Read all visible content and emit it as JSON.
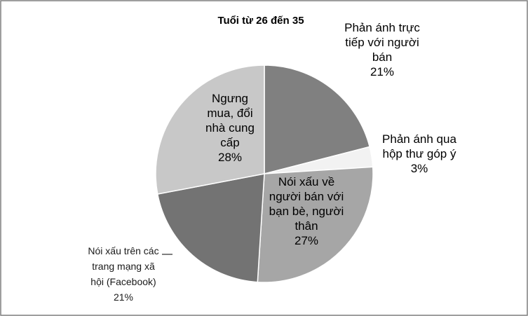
{
  "chart_data": {
    "type": "pie",
    "title": "Tuổi từ 26 đến 35",
    "start_angle_deg": 0,
    "direction": "clockwise",
    "slices": [
      {
        "label": "Phản ánh trực tiếp với người bán",
        "value": 21,
        "value_label": "21%",
        "label_lines": [
          "Phản ánh trực",
          "tiếp với người",
          "bán",
          "21%"
        ],
        "color": "#808080"
      },
      {
        "label": "Phản ánh qua hộp thư góp ý",
        "value": 3,
        "value_label": "3%",
        "label_lines": [
          "Phản ánh qua",
          "hộp thư góp ý",
          "3%"
        ],
        "color": "#f2f2f2"
      },
      {
        "label": "Nói xấu về người bán với bạn bè, người thân",
        "value": 27,
        "value_label": "27%",
        "label_lines": [
          "Nói xấu về",
          "người bán với",
          "bạn bè, người",
          "thân",
          "27%"
        ],
        "color": "#a6a6a6"
      },
      {
        "label": "Nói xấu trên các trang mạng xã hội (Facebook)",
        "value": 21,
        "value_label": "21%",
        "label_lines": [
          "Nói xấu trên các",
          "trang mạng xã",
          "hội (Facebook)",
          "21%"
        ],
        "color": "#737373"
      },
      {
        "label": "Ngưng mua, đổi nhà cung cấp",
        "value": 28,
        "value_label": "28%",
        "label_lines": [
          "Ngưng",
          "mua, đổi",
          "nhà cung",
          "cấp",
          "28%"
        ],
        "color": "#c8c8c8"
      }
    ],
    "legend": "none"
  }
}
